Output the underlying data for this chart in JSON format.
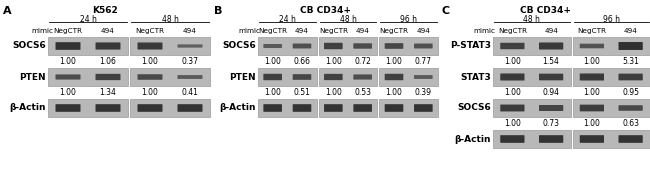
{
  "panel_A": {
    "title": "K562",
    "time_points": [
      "24 h",
      "48 h"
    ],
    "columns": [
      "NegCTR",
      "494",
      "NegCTR",
      "494"
    ],
    "rows": [
      {
        "label": "SOCS6",
        "values": [
          "1.00",
          "1.06",
          "1.00",
          "0.37"
        ],
        "bands": [
          0.88,
          0.82,
          0.8,
          0.3
        ]
      },
      {
        "label": "PTEN",
        "values": [
          "1.00",
          "1.34",
          "1.00",
          "0.41"
        ],
        "bands": [
          0.55,
          0.7,
          0.6,
          0.38
        ]
      },
      {
        "label": "β-Actin",
        "values": [],
        "bands": [
          0.88,
          0.88,
          0.88,
          0.88
        ]
      }
    ],
    "n_groups": 2,
    "n_cols": 4
  },
  "panel_B": {
    "title": "CB CD34+",
    "time_points": [
      "24 h",
      "48 h",
      "96 h"
    ],
    "columns": [
      "NegCTR",
      "494",
      "NegCTR",
      "494",
      "NegCTR",
      "494"
    ],
    "rows": [
      {
        "label": "SOCS6",
        "values": [
          "1.00",
          "0.66",
          "1.00",
          "0.72",
          "1.00",
          "0.77"
        ],
        "bands": [
          0.4,
          0.52,
          0.72,
          0.58,
          0.62,
          0.52
        ]
      },
      {
        "label": "PTEN",
        "values": [
          "1.00",
          "0.51",
          "1.00",
          "0.53",
          "1.00",
          "0.39"
        ],
        "bands": [
          0.72,
          0.62,
          0.7,
          0.55,
          0.72,
          0.38
        ]
      },
      {
        "label": "β-Actin",
        "values": [],
        "bands": [
          0.88,
          0.88,
          0.88,
          0.88,
          0.88,
          0.88
        ]
      }
    ],
    "n_groups": 3,
    "n_cols": 6
  },
  "panel_C": {
    "title": "CB CD34+",
    "time_points": [
      "48 h",
      "96 h"
    ],
    "columns": [
      "NegCTR",
      "494",
      "NegCTR",
      "494"
    ],
    "rows": [
      {
        "label": "P-STAT3",
        "values": [
          "1.00",
          "1.54",
          "1.00",
          "5.31"
        ],
        "bands": [
          0.72,
          0.8,
          0.48,
          0.92
        ]
      },
      {
        "label": "STAT3",
        "values": [
          "1.00",
          "0.94",
          "1.00",
          "0.95"
        ],
        "bands": [
          0.8,
          0.75,
          0.8,
          0.76
        ]
      },
      {
        "label": "SOCS6",
        "values": [
          "1.00",
          "0.73",
          "1.00",
          "0.63"
        ],
        "bands": [
          0.78,
          0.66,
          0.76,
          0.6
        ]
      },
      {
        "label": "β-Actin",
        "values": [],
        "bands": [
          0.88,
          0.88,
          0.88,
          0.88
        ]
      }
    ],
    "n_groups": 2,
    "n_cols": 4
  },
  "bg_color": "#ffffff",
  "blot_bg": "#b8b8b8",
  "band_dark": "#2a2a2a",
  "text_color": "#000000",
  "fs_panel_letter": 8,
  "fs_title": 6.5,
  "fs_row_label": 6.5,
  "fs_col_header": 5.2,
  "fs_values": 5.5,
  "fs_mimic": 5.2,
  "fs_time": 5.5
}
